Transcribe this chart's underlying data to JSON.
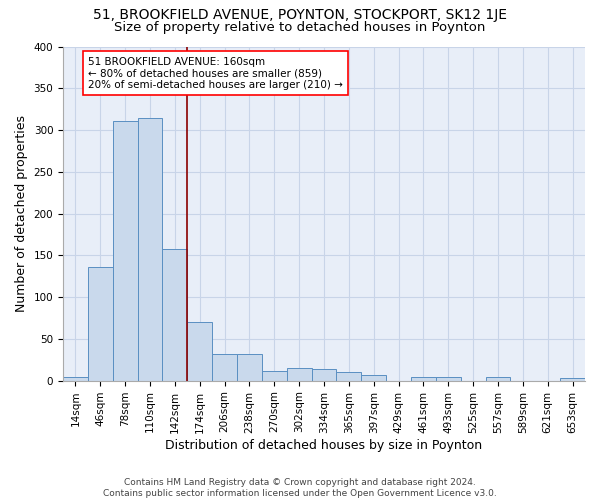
{
  "title": "51, BROOKFIELD AVENUE, POYNTON, STOCKPORT, SK12 1JE",
  "subtitle": "Size of property relative to detached houses in Poynton",
  "xlabel": "Distribution of detached houses by size in Poynton",
  "ylabel": "Number of detached properties",
  "footer_line1": "Contains HM Land Registry data © Crown copyright and database right 2024.",
  "footer_line2": "Contains public sector information licensed under the Open Government Licence v3.0.",
  "bin_labels": [
    "14sqm",
    "46sqm",
    "78sqm",
    "110sqm",
    "142sqm",
    "174sqm",
    "206sqm",
    "238sqm",
    "270sqm",
    "302sqm",
    "334sqm",
    "365sqm",
    "397sqm",
    "429sqm",
    "461sqm",
    "493sqm",
    "525sqm",
    "557sqm",
    "589sqm",
    "621sqm",
    "653sqm"
  ],
  "bar_heights": [
    4,
    136,
    311,
    314,
    158,
    70,
    32,
    32,
    12,
    15,
    14,
    10,
    7,
    0,
    4,
    4,
    0,
    4,
    0,
    0,
    3
  ],
  "bar_color": "#c9d9ec",
  "bar_edge_color": "#5a8fc2",
  "vline_bin_index": 4.5,
  "annotation_text": "51 BROOKFIELD AVENUE: 160sqm\n← 80% of detached houses are smaller (859)\n20% of semi-detached houses are larger (210) →",
  "annotation_box_color": "white",
  "annotation_box_edge_color": "red",
  "vline_color": "#8b0000",
  "ylim": [
    0,
    400
  ],
  "yticks": [
    0,
    50,
    100,
    150,
    200,
    250,
    300,
    350,
    400
  ],
  "grid_color": "#c8d4e8",
  "bg_color": "#e8eef8",
  "title_fontsize": 10,
  "subtitle_fontsize": 9.5,
  "ylabel_fontsize": 9,
  "xlabel_fontsize": 9,
  "tick_fontsize": 7.5,
  "annotation_fontsize": 7.5,
  "footer_fontsize": 6.5
}
